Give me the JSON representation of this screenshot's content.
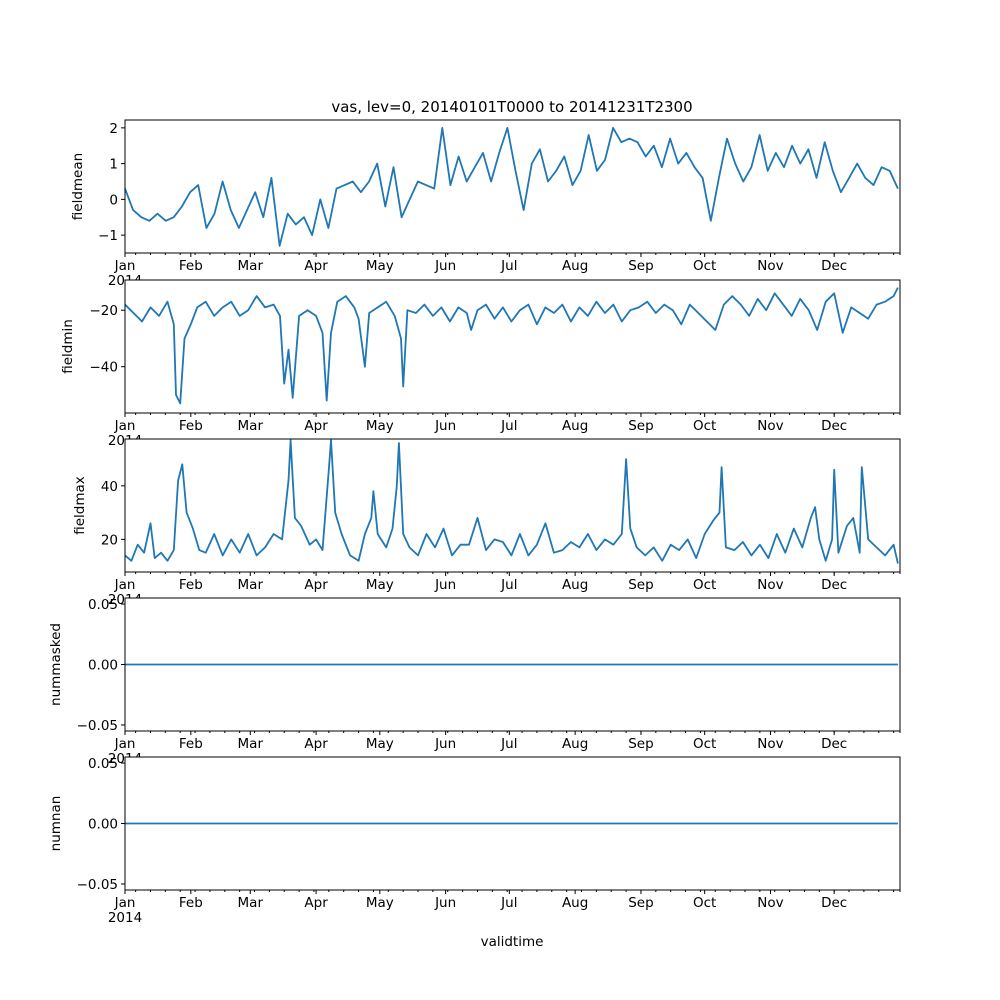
{
  "chart_data": {
    "type": "line",
    "title": "vas, lev=0, 20140101T0000 to 20141231T2300",
    "xlabel": "validtime",
    "year_label": "2014",
    "month_labels": [
      "Jan",
      "Feb",
      "Mar",
      "Apr",
      "May",
      "Jun",
      "Jul",
      "Aug",
      "Sep",
      "Oct",
      "Nov",
      "Dec"
    ],
    "month_start_days": [
      0,
      31,
      59,
      90,
      120,
      151,
      181,
      212,
      243,
      273,
      304,
      334
    ],
    "days_in_year": 365,
    "line_color": "#1f77b4",
    "grid": false,
    "panels": [
      {
        "ylabel": "fieldmean",
        "ylim": [
          -1.5,
          2.22
        ],
        "yticks": [
          {
            "v": -1,
            "label": "−1"
          },
          {
            "v": 0,
            "label": "0"
          },
          {
            "v": 1,
            "label": "1"
          },
          {
            "v": 2,
            "label": "2"
          }
        ],
        "values": [
          0.3,
          -0.3,
          -0.5,
          -0.6,
          -0.4,
          -0.6,
          -0.5,
          -0.2,
          0.2,
          0.4,
          -0.8,
          -0.4,
          0.5,
          -0.3,
          -0.8,
          -0.3,
          0.2,
          -0.5,
          0.6,
          -1.3,
          -0.4,
          -0.7,
          -0.5,
          -1.0,
          0.0,
          -0.8,
          0.3,
          0.4,
          0.5,
          0.2,
          0.5,
          1.0,
          -0.2,
          0.9,
          -0.5,
          0.0,
          0.5,
          0.4,
          0.3,
          2.0,
          0.4,
          1.2,
          0.5,
          0.9,
          1.3,
          0.5,
          1.3,
          2.0,
          0.8,
          -0.3,
          1.0,
          1.4,
          0.5,
          0.8,
          1.2,
          0.4,
          0.8,
          1.8,
          0.8,
          1.1,
          2.0,
          1.6,
          1.7,
          1.6,
          1.2,
          1.5,
          0.9,
          1.7,
          1.0,
          1.3,
          0.9,
          0.6,
          -0.6,
          0.6,
          1.7,
          1.0,
          0.5,
          0.9,
          1.8,
          0.8,
          1.3,
          0.9,
          1.5,
          1.0,
          1.4,
          0.6,
          1.6,
          0.8,
          0.2,
          0.6,
          1.0,
          0.6,
          0.4,
          0.9,
          0.8,
          0.3
        ]
      },
      {
        "ylabel": "fieldmin",
        "ylim": [
          -56.4,
          -9.3
        ],
        "yticks": [
          {
            "v": -40,
            "label": "−40"
          },
          {
            "v": -20,
            "label": "−20"
          }
        ],
        "points": [
          [
            0,
            -18
          ],
          [
            4,
            -21
          ],
          [
            8,
            -24
          ],
          [
            12,
            -19
          ],
          [
            16,
            -22
          ],
          [
            20,
            -17
          ],
          [
            23,
            -25
          ],
          [
            24,
            -50
          ],
          [
            26,
            -53
          ],
          [
            28,
            -30
          ],
          [
            31,
            -25
          ],
          [
            34,
            -19
          ],
          [
            38,
            -17
          ],
          [
            42,
            -22
          ],
          [
            46,
            -19
          ],
          [
            50,
            -17
          ],
          [
            54,
            -22
          ],
          [
            58,
            -20
          ],
          [
            62,
            -15
          ],
          [
            66,
            -19
          ],
          [
            70,
            -18
          ],
          [
            73,
            -22
          ],
          [
            75,
            -46
          ],
          [
            77,
            -34
          ],
          [
            79,
            -51
          ],
          [
            82,
            -22
          ],
          [
            86,
            -20
          ],
          [
            90,
            -22
          ],
          [
            93,
            -28
          ],
          [
            95,
            -52
          ],
          [
            97,
            -28
          ],
          [
            100,
            -17
          ],
          [
            104,
            -15
          ],
          [
            108,
            -19
          ],
          [
            110,
            -23
          ],
          [
            113,
            -40
          ],
          [
            115,
            -21
          ],
          [
            119,
            -19
          ],
          [
            123,
            -17
          ],
          [
            127,
            -22
          ],
          [
            130,
            -30
          ],
          [
            131,
            -47
          ],
          [
            133,
            -20
          ],
          [
            137,
            -21
          ],
          [
            141,
            -18
          ],
          [
            145,
            -22
          ],
          [
            149,
            -19
          ],
          [
            153,
            -24
          ],
          [
            157,
            -19
          ],
          [
            161,
            -21
          ],
          [
            163,
            -27
          ],
          [
            166,
            -20
          ],
          [
            170,
            -18
          ],
          [
            174,
            -23
          ],
          [
            178,
            -19
          ],
          [
            182,
            -24
          ],
          [
            186,
            -20
          ],
          [
            190,
            -18
          ],
          [
            194,
            -25
          ],
          [
            198,
            -19
          ],
          [
            202,
            -21
          ],
          [
            206,
            -18
          ],
          [
            210,
            -24
          ],
          [
            214,
            -19
          ],
          [
            218,
            -22
          ],
          [
            222,
            -17
          ],
          [
            226,
            -21
          ],
          [
            230,
            -18
          ],
          [
            234,
            -24
          ],
          [
            238,
            -20
          ],
          [
            242,
            -19
          ],
          [
            246,
            -17
          ],
          [
            250,
            -21
          ],
          [
            254,
            -18
          ],
          [
            258,
            -20
          ],
          [
            262,
            -25
          ],
          [
            266,
            -18
          ],
          [
            270,
            -21
          ],
          [
            274,
            -24
          ],
          [
            278,
            -27
          ],
          [
            282,
            -18
          ],
          [
            286,
            -15
          ],
          [
            290,
            -18
          ],
          [
            294,
            -22
          ],
          [
            298,
            -16
          ],
          [
            302,
            -20
          ],
          [
            306,
            -14
          ],
          [
            310,
            -18
          ],
          [
            314,
            -22
          ],
          [
            318,
            -16
          ],
          [
            322,
            -20
          ],
          [
            326,
            -27
          ],
          [
            330,
            -17
          ],
          [
            334,
            -14
          ],
          [
            338,
            -28
          ],
          [
            342,
            -19
          ],
          [
            346,
            -21
          ],
          [
            350,
            -23
          ],
          [
            354,
            -18
          ],
          [
            358,
            -17
          ],
          [
            362,
            -15
          ],
          [
            364,
            -12
          ]
        ]
      },
      {
        "ylabel": "fieldmax",
        "ylim": [
          7.8,
          57.5
        ],
        "yticks": [
          {
            "v": 20,
            "label": "20"
          },
          {
            "v": 40,
            "label": "40"
          }
        ],
        "points": [
          [
            0,
            14
          ],
          [
            3,
            12
          ],
          [
            6,
            18
          ],
          [
            9,
            15
          ],
          [
            12,
            26
          ],
          [
            14,
            13
          ],
          [
            17,
            15
          ],
          [
            20,
            12
          ],
          [
            23,
            16
          ],
          [
            25,
            42
          ],
          [
            27,
            48
          ],
          [
            29,
            30
          ],
          [
            32,
            24
          ],
          [
            35,
            16
          ],
          [
            38,
            15
          ],
          [
            42,
            22
          ],
          [
            46,
            14
          ],
          [
            50,
            20
          ],
          [
            54,
            15
          ],
          [
            58,
            22
          ],
          [
            62,
            14
          ],
          [
            66,
            17
          ],
          [
            70,
            22
          ],
          [
            74,
            20
          ],
          [
            77,
            42
          ],
          [
            78,
            57
          ],
          [
            80,
            28
          ],
          [
            83,
            25
          ],
          [
            87,
            18
          ],
          [
            90,
            20
          ],
          [
            93,
            16
          ],
          [
            96,
            46
          ],
          [
            97,
            57
          ],
          [
            99,
            30
          ],
          [
            102,
            22
          ],
          [
            106,
            14
          ],
          [
            110,
            12
          ],
          [
            113,
            22
          ],
          [
            116,
            28
          ],
          [
            117,
            38
          ],
          [
            119,
            22
          ],
          [
            123,
            17
          ],
          [
            126,
            24
          ],
          [
            128,
            40
          ],
          [
            129,
            56
          ],
          [
            131,
            22
          ],
          [
            134,
            17
          ],
          [
            138,
            14
          ],
          [
            142,
            22
          ],
          [
            146,
            17
          ],
          [
            150,
            24
          ],
          [
            154,
            14
          ],
          [
            158,
            18
          ],
          [
            162,
            18
          ],
          [
            166,
            28
          ],
          [
            170,
            16
          ],
          [
            174,
            20
          ],
          [
            178,
            19
          ],
          [
            182,
            14
          ],
          [
            186,
            22
          ],
          [
            190,
            14
          ],
          [
            194,
            18
          ],
          [
            198,
            26
          ],
          [
            202,
            15
          ],
          [
            206,
            16
          ],
          [
            210,
            19
          ],
          [
            214,
            17
          ],
          [
            218,
            22
          ],
          [
            222,
            16
          ],
          [
            226,
            20
          ],
          [
            230,
            18
          ],
          [
            234,
            22
          ],
          [
            236,
            50
          ],
          [
            238,
            24
          ],
          [
            241,
            17
          ],
          [
            245,
            14
          ],
          [
            249,
            17
          ],
          [
            253,
            12
          ],
          [
            257,
            18
          ],
          [
            261,
            16
          ],
          [
            265,
            20
          ],
          [
            269,
            13
          ],
          [
            273,
            22
          ],
          [
            277,
            27
          ],
          [
            280,
            30
          ],
          [
            281,
            47
          ],
          [
            283,
            17
          ],
          [
            287,
            16
          ],
          [
            291,
            19
          ],
          [
            295,
            14
          ],
          [
            299,
            18
          ],
          [
            303,
            13
          ],
          [
            307,
            22
          ],
          [
            311,
            15
          ],
          [
            315,
            24
          ],
          [
            319,
            17
          ],
          [
            323,
            28
          ],
          [
            325,
            32
          ],
          [
            327,
            20
          ],
          [
            330,
            12
          ],
          [
            333,
            20
          ],
          [
            334,
            46
          ],
          [
            336,
            15
          ],
          [
            340,
            25
          ],
          [
            343,
            28
          ],
          [
            346,
            15
          ],
          [
            347,
            47
          ],
          [
            350,
            20
          ],
          [
            354,
            17
          ],
          [
            358,
            14
          ],
          [
            362,
            18
          ],
          [
            364,
            11
          ]
        ]
      },
      {
        "ylabel": "nummasked",
        "ylim": [
          -0.055,
          0.055
        ],
        "yticks": [
          {
            "v": -0.05,
            "label": "−0.05"
          },
          {
            "v": 0,
            "label": "0.00"
          },
          {
            "v": 0.05,
            "label": "0.05"
          }
        ],
        "points": [
          [
            0,
            0
          ],
          [
            364,
            0
          ]
        ]
      },
      {
        "ylabel": "numnan",
        "ylim": [
          -0.055,
          0.055
        ],
        "yticks": [
          {
            "v": -0.05,
            "label": "−0.05"
          },
          {
            "v": 0,
            "label": "0.00"
          },
          {
            "v": 0.05,
            "label": "0.05"
          }
        ],
        "points": [
          [
            0,
            0
          ],
          [
            364,
            0
          ]
        ]
      }
    ]
  }
}
